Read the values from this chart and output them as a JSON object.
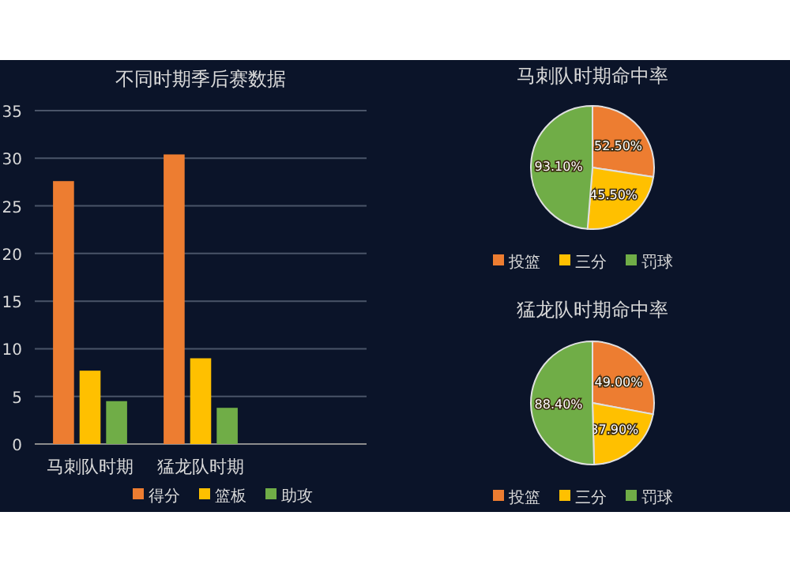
{
  "chart_data": [
    {
      "type": "bar",
      "title": "不同时期季后赛数据",
      "categories": [
        "马刺队时期",
        "猛龙队时期",
        null
      ],
      "series": [
        {
          "name": "得分",
          "color": "#ed7d31",
          "values": [
            27.6,
            30.4,
            null
          ]
        },
        {
          "name": "篮板",
          "color": "#ffc000",
          "values": [
            7.7,
            9.0,
            null
          ]
        },
        {
          "name": "助攻",
          "color": "#70ad47",
          "values": [
            4.5,
            3.8,
            null
          ]
        }
      ],
      "ylim": [
        0,
        35
      ],
      "yticks": [
        0,
        5,
        10,
        15,
        20,
        25,
        30,
        35
      ],
      "grid": "y",
      "legend": "bottom"
    },
    {
      "type": "pie",
      "title": "马刺队时期命中率",
      "categories": [
        "投篮",
        "三分",
        "罚球"
      ],
      "values": [
        52.5,
        45.5,
        93.1
      ],
      "value_labels": [
        "52.50%",
        "45.50%",
        "93.10%"
      ],
      "colors": [
        "#ed7d31",
        "#ffc000",
        "#70ad47"
      ],
      "legend": "bottom"
    },
    {
      "type": "pie",
      "title": "猛龙队时期命中率",
      "categories": [
        "投篮",
        "三分",
        "罚球"
      ],
      "values": [
        49.0,
        37.9,
        88.4
      ],
      "value_labels": [
        "49.00%",
        "37.90%",
        "88.40%"
      ],
      "colors": [
        "#ed7d31",
        "#ffc000",
        "#70ad47"
      ],
      "legend": "bottom"
    }
  ]
}
